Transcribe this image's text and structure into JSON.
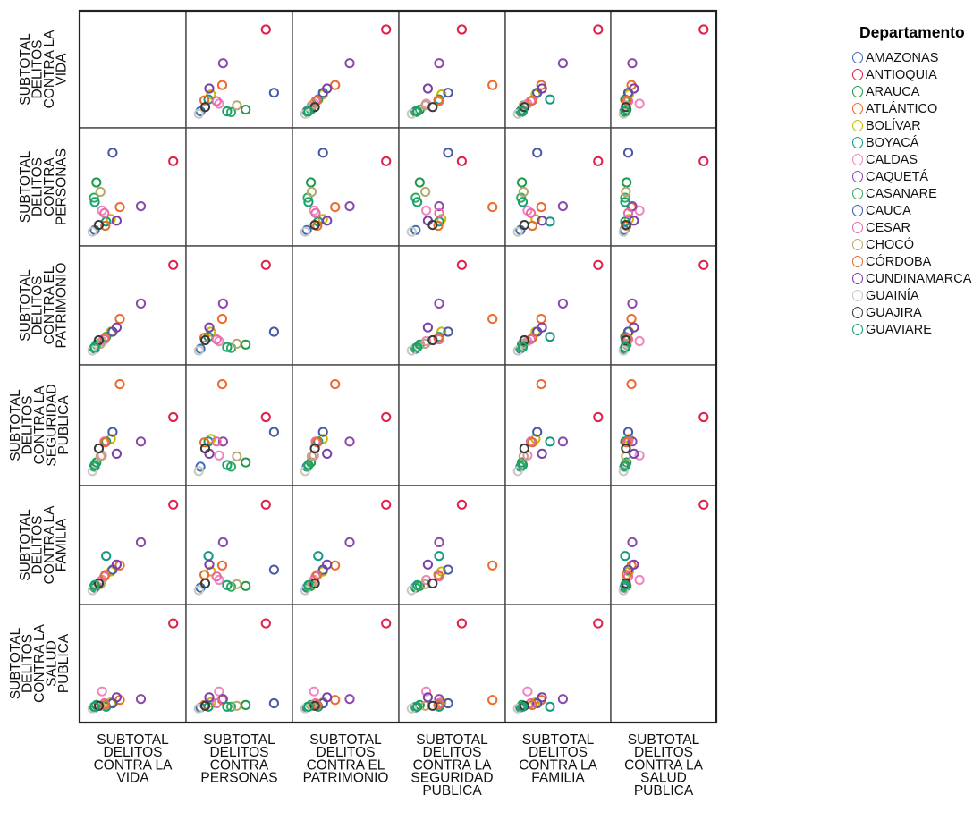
{
  "chart_data": {
    "type": "scatter",
    "subtype": "scatterplot-matrix",
    "title": "",
    "variables": [
      {
        "label": [
          "SUBTOTAL",
          "DELITOS",
          "CONTRA LA",
          "VIDA"
        ]
      },
      {
        "label": [
          "SUBTOTAL",
          "DELITOS",
          "CONTRA",
          "PERSONAS"
        ]
      },
      {
        "label": [
          "SUBTOTAL",
          "DELITOS",
          "CONTRA EL",
          "PATRIMONIO"
        ]
      },
      {
        "label": [
          "SUBTOTAL",
          "DELITOS",
          "CONTRA LA",
          "SEGURIDAD",
          "PUBLICA"
        ]
      },
      {
        "label": [
          "SUBTOTAL",
          "DELITOS",
          "CONTRA LA",
          "FAMILIA"
        ]
      },
      {
        "label": [
          "SUBTOTAL",
          "DELITOS",
          "CONTRA LA",
          "SALUD",
          "PUBLICA"
        ]
      }
    ],
    "value_scale": "relative (0 = minimum, 1 = maximum of each variable; no axis ticks shown)",
    "grid": false,
    "diagonal": "empty",
    "legend": {
      "title": "Departamento",
      "position": "right"
    },
    "series": [
      {
        "name": "AMAZONAS",
        "color": "#3f6fb5",
        "values": [
          0.03,
          0.02,
          0.02,
          0.05,
          0.03,
          0.01
        ]
      },
      {
        "name": "ANTIOQUIA",
        "color": "#e0204a",
        "values": [
          1.0,
          0.83,
          1.0,
          0.62,
          1.0,
          1.0
        ]
      },
      {
        "name": "ARAUCA",
        "color": "#1f9a4a",
        "values": [
          0.05,
          0.58,
          0.07,
          0.1,
          0.05,
          0.04
        ]
      },
      {
        "name": "ATLÁNTICO",
        "color": "#ee6a2c",
        "values": [
          0.34,
          0.29,
          0.37,
          1.0,
          0.29,
          0.1
        ]
      },
      {
        "name": "BOLÍVAR",
        "color": "#c8b800",
        "values": [
          0.23,
          0.15,
          0.22,
          0.37,
          0.22,
          0.07
        ]
      },
      {
        "name": "BOYACÁ",
        "color": "#109a80",
        "values": [
          0.17,
          0.12,
          0.16,
          0.34,
          0.4,
          0.02
        ]
      },
      {
        "name": "CALDAS",
        "color": "#ef86bd",
        "values": [
          0.12,
          0.25,
          0.11,
          0.18,
          0.12,
          0.2
        ]
      },
      {
        "name": "CAQUETÁ",
        "color": "#8a4aaa",
        "values": [
          0.6,
          0.3,
          0.55,
          0.34,
          0.56,
          0.11
        ]
      },
      {
        "name": "CASANARE",
        "color": "#2fae5c",
        "values": [
          0.02,
          0.4,
          0.03,
          0.05,
          0.04,
          0.02
        ]
      },
      {
        "name": "CAUCA",
        "color": "#4858a8",
        "values": [
          0.25,
          0.93,
          0.22,
          0.45,
          0.24,
          0.06
        ]
      },
      {
        "name": "CESAR",
        "color": "#e86aa8",
        "values": [
          0.15,
          0.22,
          0.13,
          0.34,
          0.16,
          0.06
        ]
      },
      {
        "name": "CHOCÓ",
        "color": "#b8a870",
        "values": [
          0.1,
          0.47,
          0.08,
          0.17,
          0.07,
          0.03
        ]
      },
      {
        "name": "CÓRDOBA",
        "color": "#e06f30",
        "values": [
          0.16,
          0.07,
          0.15,
          0.33,
          0.18,
          0.04
        ]
      },
      {
        "name": "CUNDINAMARCA",
        "color": "#7a40a8",
        "values": [
          0.3,
          0.13,
          0.27,
          0.2,
          0.3,
          0.13
        ]
      },
      {
        "name": "GUAINÍA",
        "color": "#c8c8c0",
        "values": [
          0.0,
          0.0,
          0.0,
          0.0,
          0.0,
          0.0
        ]
      },
      {
        "name": "GUAJIRA",
        "color": "#3a3a3a",
        "values": [
          0.08,
          0.08,
          0.12,
          0.26,
          0.08,
          0.03
        ]
      },
      {
        "name": "GUAVIARE",
        "color": "#18a070",
        "values": [
          0.03,
          0.35,
          0.04,
          0.07,
          0.06,
          0.02
        ]
      }
    ]
  }
}
